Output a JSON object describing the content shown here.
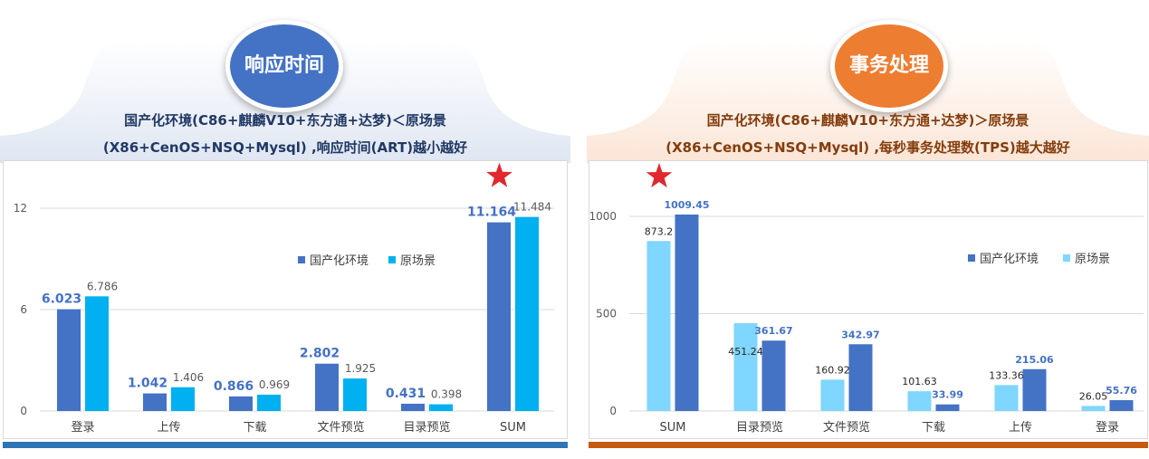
{
  "left": {
    "badge": "响应时间",
    "badge_color": "#4472C4",
    "line1": "国产化环境(C86+麒麟V10+东方通+达梦)＜原场景",
    "line2": "(X86+CenOS+NSQ+Mysql) ,响应时间(ART)越小越好",
    "text_color": "#203864",
    "bar_color": "#2E75B6"
  },
  "right": {
    "badge": "事务处理",
    "badge_color": "#ED7D31",
    "line1": "国产化环境(C86+麒麟V10+东方通+达梦)＞原场景",
    "line2": "(X86+CenOS+NSQ+Mysql) ,每秒事务处理数(TPS)越大越好",
    "text_color": "#843C0C",
    "bar_color": "#C55A11"
  },
  "chart_data": [
    {
      "type": "bar",
      "title": "响应时间",
      "categories": [
        "登录",
        "上传",
        "下载",
        "文件预览",
        "目录预览",
        "SUM"
      ],
      "ylim": [
        0,
        12
      ],
      "yticks": [
        0,
        6,
        12
      ],
      "legend": "right",
      "series": [
        {
          "name": "国产化环境",
          "color": "#4472C4",
          "values": [
            6.023,
            1.042,
            0.866,
            2.802,
            0.431,
            11.164
          ]
        },
        {
          "name": "原场景",
          "color": "#00B0F0",
          "values": [
            6.786,
            1.406,
            0.969,
            1.925,
            0.398,
            11.484
          ]
        }
      ],
      "star_category": "SUM"
    },
    {
      "type": "bar",
      "title": "事务处理",
      "categories": [
        "SUM",
        "目录预览",
        "文件预览",
        "下载",
        "上传",
        "登录"
      ],
      "ylim": [
        0,
        1000
      ],
      "yticks": [
        0,
        500,
        1000
      ],
      "legend": "right",
      "series": [
        {
          "name": "原场景",
          "color": "#7FD6FF",
          "values": [
            873.2,
            451.24,
            160.92,
            101.63,
            133.36,
            26.05
          ]
        },
        {
          "name": "国产化环境",
          "color": "#4472C4",
          "values": [
            1009.45,
            361.67,
            342.97,
            33.99,
            215.06,
            55.76
          ]
        }
      ],
      "star_category": "SUM"
    }
  ]
}
